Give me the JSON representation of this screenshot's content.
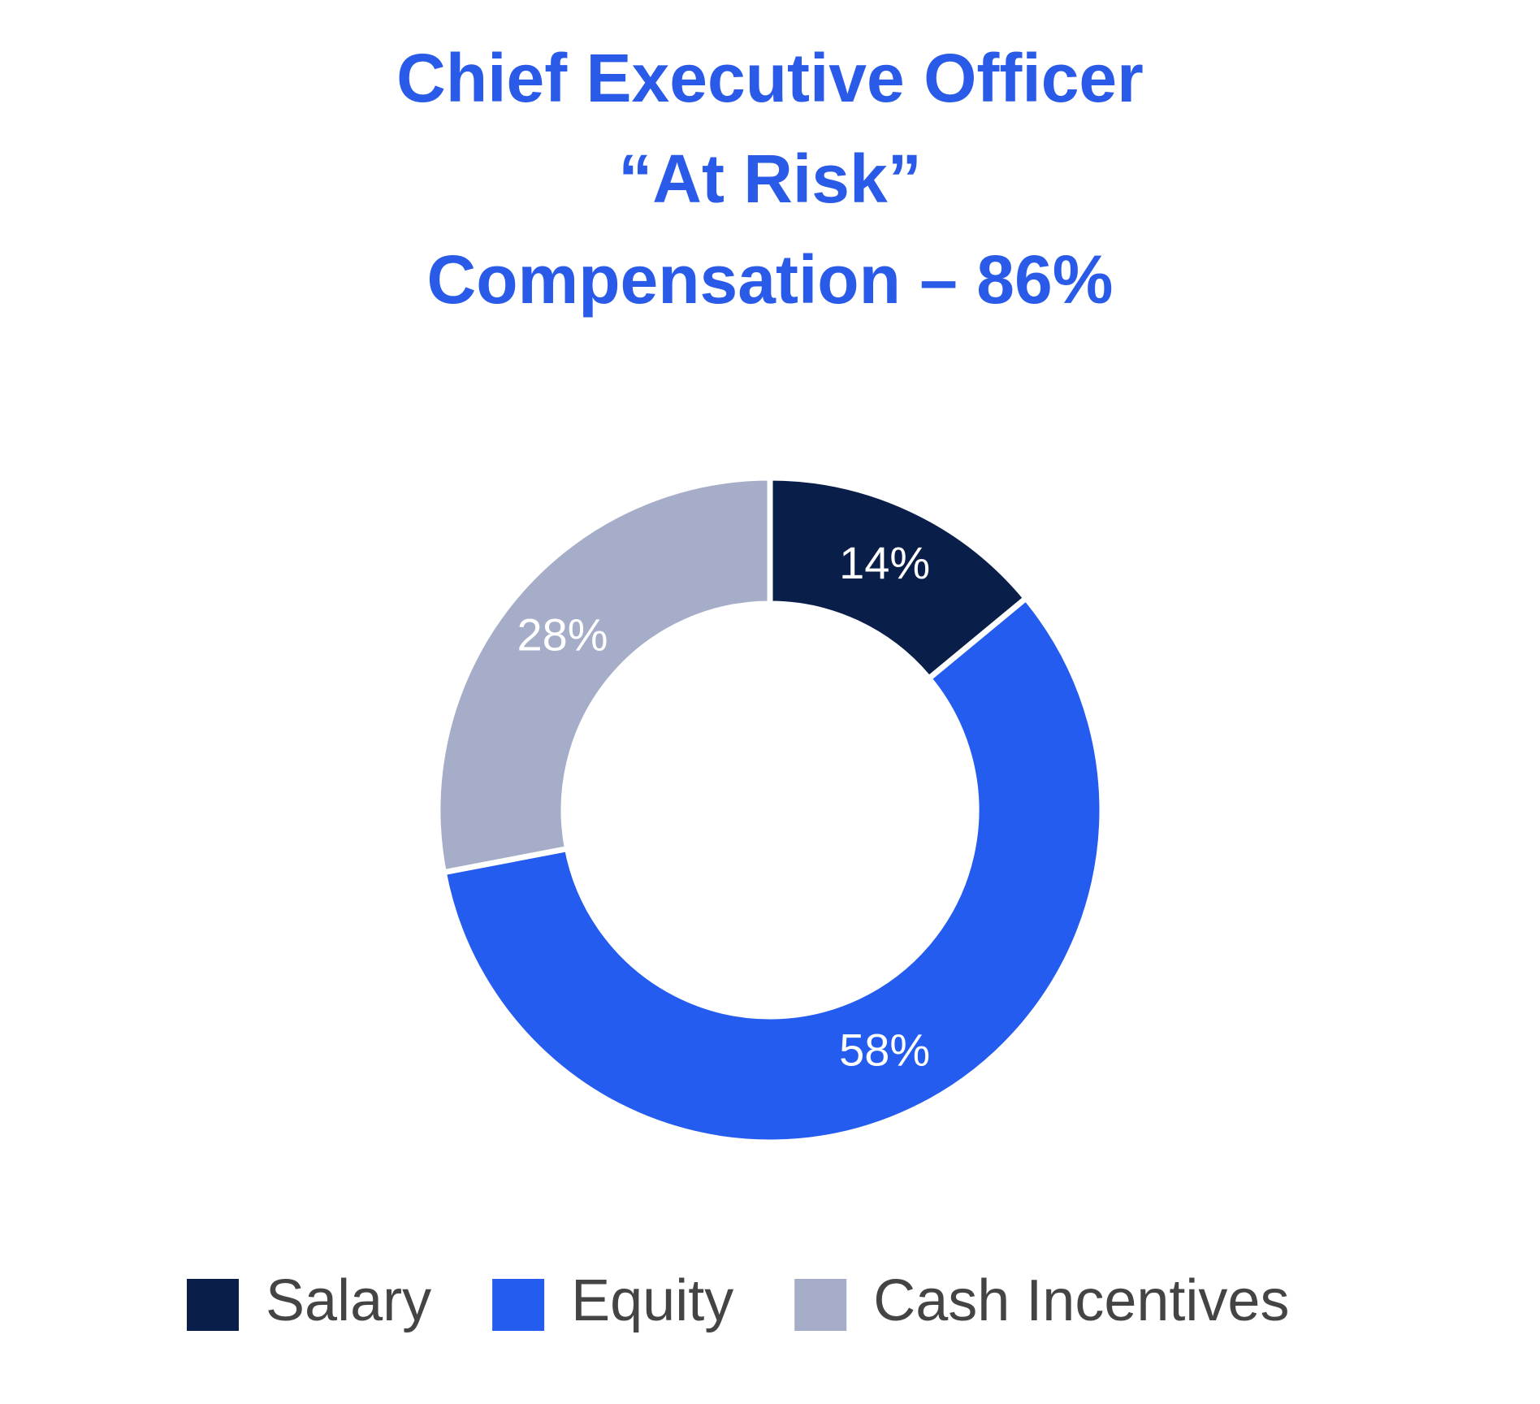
{
  "chart_data": {
    "type": "donut",
    "title": [
      "Chief Executive Officer",
      "“At Risk”",
      "Compensation – 86%"
    ],
    "categories": [
      "Salary",
      "Equity",
      "Cash Incentives"
    ],
    "values": [
      14,
      58,
      28
    ],
    "value_labels": [
      "14%",
      "58%",
      "28%"
    ],
    "colors": [
      "#0a1e4a",
      "#255cf0",
      "#a5adc8"
    ],
    "legend": "bottom"
  }
}
